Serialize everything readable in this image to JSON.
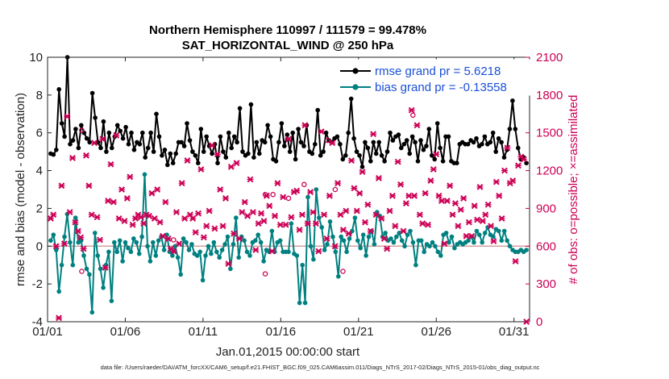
{
  "chart_data": {
    "type": "line",
    "title": "Northern Hemisphere 110997 / 111579 = 99.478%",
    "subtitle": "SAT_HORIZONTAL_WIND @ 250 hPa",
    "xlabel": "Jan.01,2015 00:00:00 start",
    "ylabel_left": "rmse and bias (model - observation)",
    "ylabel_right": "# of obs: o=possible; ×=assimilated",
    "ylim_left": [
      -4,
      10
    ],
    "ylim_right": [
      0,
      2100
    ],
    "yticks_left": [
      "-4",
      "-2",
      "0",
      "2",
      "4",
      "6",
      "8",
      "10"
    ],
    "yticks_right": [
      "0",
      "300",
      "600",
      "900",
      "1200",
      "1500",
      "1800",
      "2100"
    ],
    "x_tick_labels": [
      "01/01",
      "01/06",
      "01/11",
      "01/16",
      "01/21",
      "01/26",
      "01/31"
    ],
    "x_tick_days": [
      1,
      6,
      11,
      16,
      21,
      26,
      31
    ],
    "xlim": [
      1,
      32
    ],
    "footnote": "data file: /Users/raeder/DAI/ATM_forcXX/CAM6_setup/f.e21.FHIST_BGC.f09_025.CAM6assim.011/Diags_NTrS_2017-02/Diags_NTrS_2015-01/obs_diag_output.nc",
    "series": [
      {
        "name": "rmse grand pr = 5.6218",
        "color": "#000000",
        "axis": "left",
        "values": [
          4.9,
          4.85,
          5.1,
          8.3,
          6.5,
          5.8,
          10.0,
          5.4,
          5.6,
          6.2,
          5.2,
          6.4,
          6.0,
          5.7,
          5.5,
          8.1,
          6.8,
          5.5,
          5.2,
          6.6,
          5.0,
          6.0,
          5.2,
          5.8,
          6.4,
          6.1,
          5.7,
          6.3,
          5.4,
          6.0,
          5.1,
          5.5,
          5.4,
          6.0,
          4.7,
          5.2,
          6.0,
          5.0,
          7.0,
          5.8,
          4.8,
          5.1,
          4.3,
          4.9,
          4.4,
          4.9,
          5.5,
          5.5,
          5.3,
          6.5,
          5.6,
          5.0,
          4.8,
          4.4,
          6.2,
          5.0,
          5.8,
          5.3,
          4.9,
          5.4,
          4.4,
          5.8,
          5.0,
          4.7,
          6.0,
          5.2,
          5.8,
          5.5,
          7.3,
          5.0,
          4.8,
          4.9,
          7.5,
          4.7,
          5.5,
          4.9,
          5.6,
          5.5,
          6.4,
          5.8,
          4.6,
          4.5,
          5.5,
          6.5,
          5.3,
          5.9,
          5.0,
          6.0,
          4.6,
          6.2,
          5.5,
          5.3,
          6.4,
          5.0,
          4.9,
          5.4,
          7.2,
          4.8,
          5.0,
          6.0,
          5.6,
          5.5,
          5.7,
          5.8,
          5.4,
          4.6,
          4.8,
          6.0,
          7.8,
          5.7,
          5.0,
          4.8,
          4.2,
          5.5,
          5.2,
          4.5,
          5.5,
          4.9,
          5.5,
          4.8,
          4.5,
          5.0,
          6.0,
          5.6,
          5.8,
          5.9,
          5.2,
          5.4,
          5.6,
          4.9,
          5.8,
          5.5,
          4.5,
          5.6,
          5.1,
          5.3,
          6.2,
          4.8,
          4.6,
          6.5,
          5.2,
          4.5,
          5.8,
          5.8,
          4.5,
          4.4,
          4.4,
          5.4,
          5.5,
          5.4,
          5.4,
          5.6,
          5.5,
          5.7,
          5.3,
          5.4,
          5.8,
          5.4,
          5.5,
          6.0,
          5.0,
          5.7,
          5.5,
          4.7,
          5.1,
          6.2,
          7.7,
          6.2,
          5.2,
          4.6,
          4.7,
          4.4
        ]
      },
      {
        "name": "bias grand pr = -0.13558",
        "color": "#008080",
        "axis": "left",
        "values": [
          0.3,
          0.6,
          -0.2,
          -2.4,
          -1.0,
          0.5,
          1.7,
          0.2,
          -1.0,
          1.5,
          0.2,
          0.3,
          -0.5,
          -1.2,
          -1.5,
          -3.5,
          0.7,
          -0.5,
          -1.2,
          -2.2,
          -1.0,
          -0.3,
          -2.9,
          0.2,
          -0.3,
          0.3,
          -0.8,
          0.2,
          -0.1,
          -0.3,
          0.4,
          0.2,
          -0.4,
          0.5,
          3.8,
          0.0,
          -0.8,
          0.2,
          -0.5,
          0.3,
          0.5,
          -0.2,
          0.6,
          -0.3,
          -0.5,
          0.0,
          -0.6,
          -1.5,
          0.4,
          0.2,
          -0.2,
          0.1,
          -0.4,
          -0.5,
          -0.3,
          -1.8,
          -0.5,
          0.0,
          -0.4,
          0.2,
          -0.3,
          -0.6,
          -0.2,
          0.1,
          0.5,
          -1.2,
          0.1,
          1.5,
          -0.6,
          0.5,
          0.3,
          -0.3,
          -0.5,
          0.2,
          0.3,
          0.6,
          0.2,
          -0.8,
          -0.2,
          -0.3,
          0.8,
          -0.3,
          0.2,
          0.3,
          -0.3,
          -0.3,
          -0.3,
          1.2,
          -0.4,
          -0.5,
          -3.0,
          -1.0,
          -3.0,
          2.6,
          0.0,
          -0.7,
          3.0,
          1.5,
          1.0,
          -0.2,
          0.1,
          1.3,
          0.5,
          -0.3,
          -1.6,
          0.5,
          0.3,
          -0.3,
          0.4,
          0.8,
          1.5,
          0.3,
          -0.1,
          0.6,
          -0.5,
          0.5,
          0.8,
          0.1,
          1.8,
          1.6,
          0.5,
          0.7,
          0.3,
          0.4,
          0.2,
          0.5,
          0.7,
          0.3,
          0.0,
          0.6,
          0.8,
          0.2,
          -1.0,
          0.3,
          0.3,
          -0.3,
          0.1,
          0.0,
          0.2,
          0.0,
          -0.3,
          -0.5,
          0.6,
          0.7,
          0.2,
          0.5,
          -0.1,
          0.1,
          0.2,
          0.1,
          0.2,
          0.3,
          0.5,
          0.2,
          0.8,
          0.6,
          0.2,
          0.7,
          1.0,
          0.6,
          0.5,
          0.9,
          0.8,
          0.3,
          0.8,
          0.3,
          0.0,
          -0.2,
          -0.3,
          -0.3,
          -0.2,
          -0.3,
          -0.2
        ]
      }
    ],
    "obs_assimilated": {
      "name": "assimilated (×)",
      "color": "#cc0055",
      "axis": "right",
      "values": [
        820,
        850,
        600,
        30,
        1080,
        620,
        1630,
        870,
        1300,
        790,
        720,
        670,
        580,
        1320,
        1080,
        850,
        1420,
        830,
        650,
        1450,
        430,
        960,
        1250,
        950,
        1480,
        820,
        1050,
        800,
        980,
        1150,
        770,
        820,
        850,
        830,
        780,
        850,
        840,
        1020,
        820,
        1050,
        790,
        680,
        950,
        660,
        580,
        560,
        870,
        620,
        1100,
        820,
        1280,
        850,
        820,
        710,
        860,
        1210,
        670,
        760,
        880,
        1400,
        740,
        1330,
        1050,
        760,
        980,
        460,
        1230,
        700,
        1260,
        660,
        870,
        950,
        840,
        1130,
        870,
        570,
        780,
        860,
        800,
        1000,
        920,
        560,
        840,
        1100,
        770,
        990,
        770,
        1450,
        830,
        1030,
        1040,
        730,
        850,
        1560,
        780,
        1030,
        870,
        780,
        560,
        1510,
        850,
        660,
        1000,
        1420,
        600,
        1100,
        850,
        730,
        880,
        700,
        1280,
        1060,
        880,
        1020,
        1190,
        790,
        930,
        720,
        1490,
        850,
        1140,
        820,
        660,
        580,
        880,
        1000,
        760,
        1270,
        1090,
        720,
        940,
        1000,
        1680,
        1000,
        1560,
        850,
        780,
        1020,
        770,
        1120,
        1210,
        1330,
        1000,
        960,
        620,
        960,
        1080,
        850,
        940,
        760,
        890,
        980,
        680,
        790,
        680,
        920,
        810,
        1070,
        800,
        850,
        930,
        760,
        640,
        1110,
        1000,
        820,
        1200,
        1380,
        1100,
        1120,
        480,
        1240,
        1310,
        1290,
        0
      ]
    },
    "obs_possible": {
      "name": "possible (o)",
      "color": "#cc0055",
      "axis": "right",
      "points": [
        {
          "x": 3.2,
          "y": 1520
        },
        {
          "x": 3.2,
          "y": 400
        },
        {
          "x": 9.1,
          "y": 650
        },
        {
          "x": 15.0,
          "y": 1010
        },
        {
          "x": 15.0,
          "y": 380
        },
        {
          "x": 15.5,
          "y": 1010
        },
        {
          "x": 16.5,
          "y": 980
        },
        {
          "x": 17.5,
          "y": 1090
        },
        {
          "x": 19.0,
          "y": 1440
        },
        {
          "x": 19.5,
          "y": 1050
        },
        {
          "x": 20.0,
          "y": 400
        },
        {
          "x": 24.5,
          "y": 1640
        }
      ]
    }
  },
  "legend": {
    "rmse_label": "rmse grand pr = 5.6218",
    "bias_label": "bias grand pr = -0.13558",
    "label_color": "#1a4fd6"
  }
}
